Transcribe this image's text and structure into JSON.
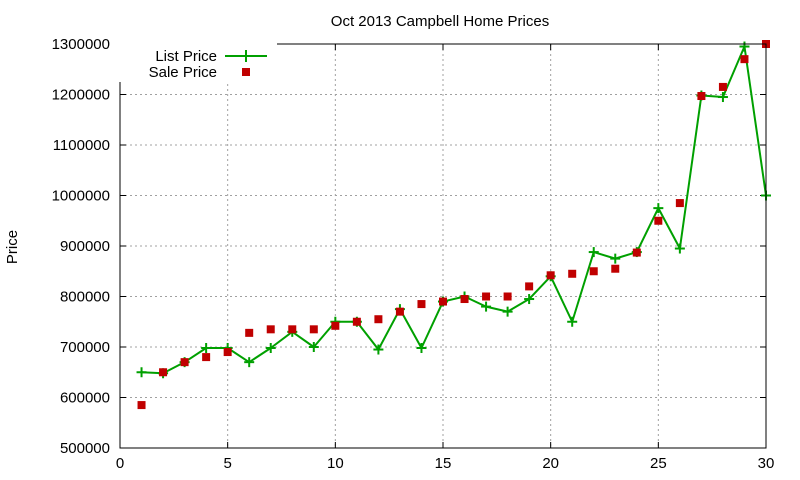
{
  "chart_data": {
    "type": "line",
    "title": "Oct 2013 Campbell Home Prices",
    "xlabel": "",
    "ylabel": "Price",
    "xlim": [
      0,
      30
    ],
    "ylim": [
      500000,
      1300000
    ],
    "xticks": [
      0,
      5,
      10,
      15,
      20,
      25,
      30
    ],
    "yticks": [
      500000,
      600000,
      700000,
      800000,
      900000,
      1000000,
      1100000,
      1200000,
      1300000
    ],
    "grid": true,
    "legend_position": "top-left",
    "series": [
      {
        "name": "List Price",
        "style": "line-with-plus-markers",
        "color": "#00a000",
        "x": [
          1,
          2,
          3,
          4,
          5,
          6,
          7,
          8,
          9,
          10,
          11,
          12,
          13,
          14,
          15,
          16,
          17,
          18,
          19,
          20,
          21,
          22,
          23,
          24,
          25,
          26,
          27,
          28,
          29,
          30
        ],
        "values": [
          650000,
          648000,
          670000,
          698000,
          698000,
          670000,
          698000,
          730000,
          700000,
          750000,
          750000,
          695000,
          775000,
          698000,
          790000,
          800000,
          780000,
          770000,
          795000,
          840000,
          750000,
          888000,
          875000,
          888000,
          975000,
          895000,
          1198000,
          1195000,
          1295000,
          1000000
        ]
      },
      {
        "name": "Sale Price",
        "style": "square-markers",
        "color": "#c00000",
        "x": [
          1,
          2,
          3,
          4,
          5,
          6,
          7,
          8,
          9,
          10,
          11,
          12,
          13,
          14,
          15,
          16,
          17,
          18,
          19,
          20,
          21,
          22,
          23,
          24,
          25,
          26,
          27,
          28,
          29,
          30
        ],
        "values": [
          585000,
          650000,
          670000,
          680000,
          690000,
          728000,
          735000,
          735000,
          735000,
          742000,
          750000,
          755000,
          770000,
          785000,
          790000,
          795000,
          800000,
          800000,
          820000,
          842000,
          845000,
          850000,
          855000,
          887000,
          950000,
          985000,
          1197000,
          1215000,
          1270000,
          1300000
        ]
      }
    ]
  }
}
